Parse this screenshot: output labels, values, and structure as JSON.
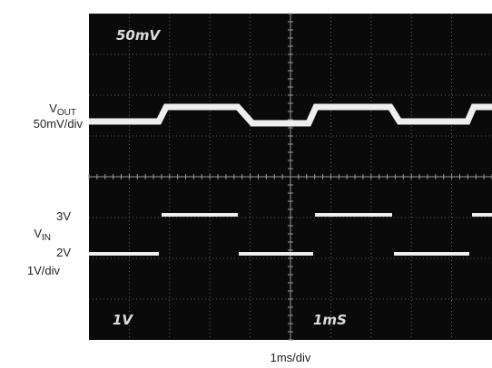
{
  "screen": {
    "top_label": "50mV",
    "bottom_left_label": "1V",
    "bottom_right_label": "1mS"
  },
  "labels": {
    "vout": {
      "main": "V",
      "sub": "OUT"
    },
    "vout_scale": "50mV/div",
    "vin_high": "3V",
    "vin": {
      "main": "V",
      "sub": "IN"
    },
    "vin_low": "2V",
    "vin_scale": "1V/div",
    "time_scale": "1ms/div"
  }
}
